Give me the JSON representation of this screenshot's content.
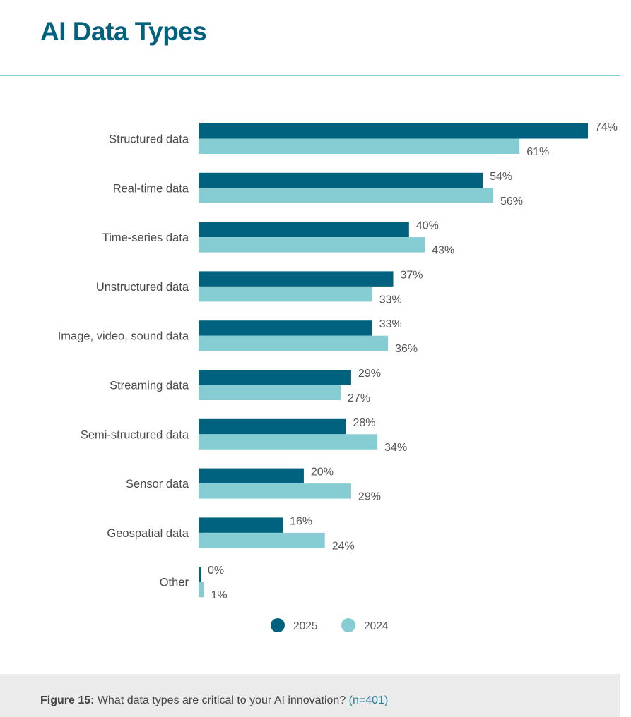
{
  "header": {
    "title": "AI Data Types"
  },
  "chart_data": {
    "type": "bar",
    "orientation": "horizontal",
    "categories": [
      "Structured data",
      "Real-time data",
      "Time-series data",
      "Unstructured data",
      "Image, video, sound data",
      "Streaming data",
      "Semi-structured data",
      "Sensor data",
      "Geospatial data",
      "Other"
    ],
    "series": [
      {
        "name": "2025",
        "color": "#00627f",
        "values": [
          74,
          54,
          40,
          37,
          33,
          29,
          28,
          20,
          16,
          0
        ]
      },
      {
        "name": "2024",
        "color": "#86cdd3",
        "values": [
          61,
          56,
          43,
          33,
          36,
          27,
          34,
          29,
          24,
          1
        ]
      }
    ],
    "value_suffix": "%",
    "legend_position": "bottom",
    "grid": false
  },
  "footer": {
    "label": "Figure 15:",
    "question": "What data types are critical to your AI innovation?",
    "sample": "(n=401)"
  }
}
